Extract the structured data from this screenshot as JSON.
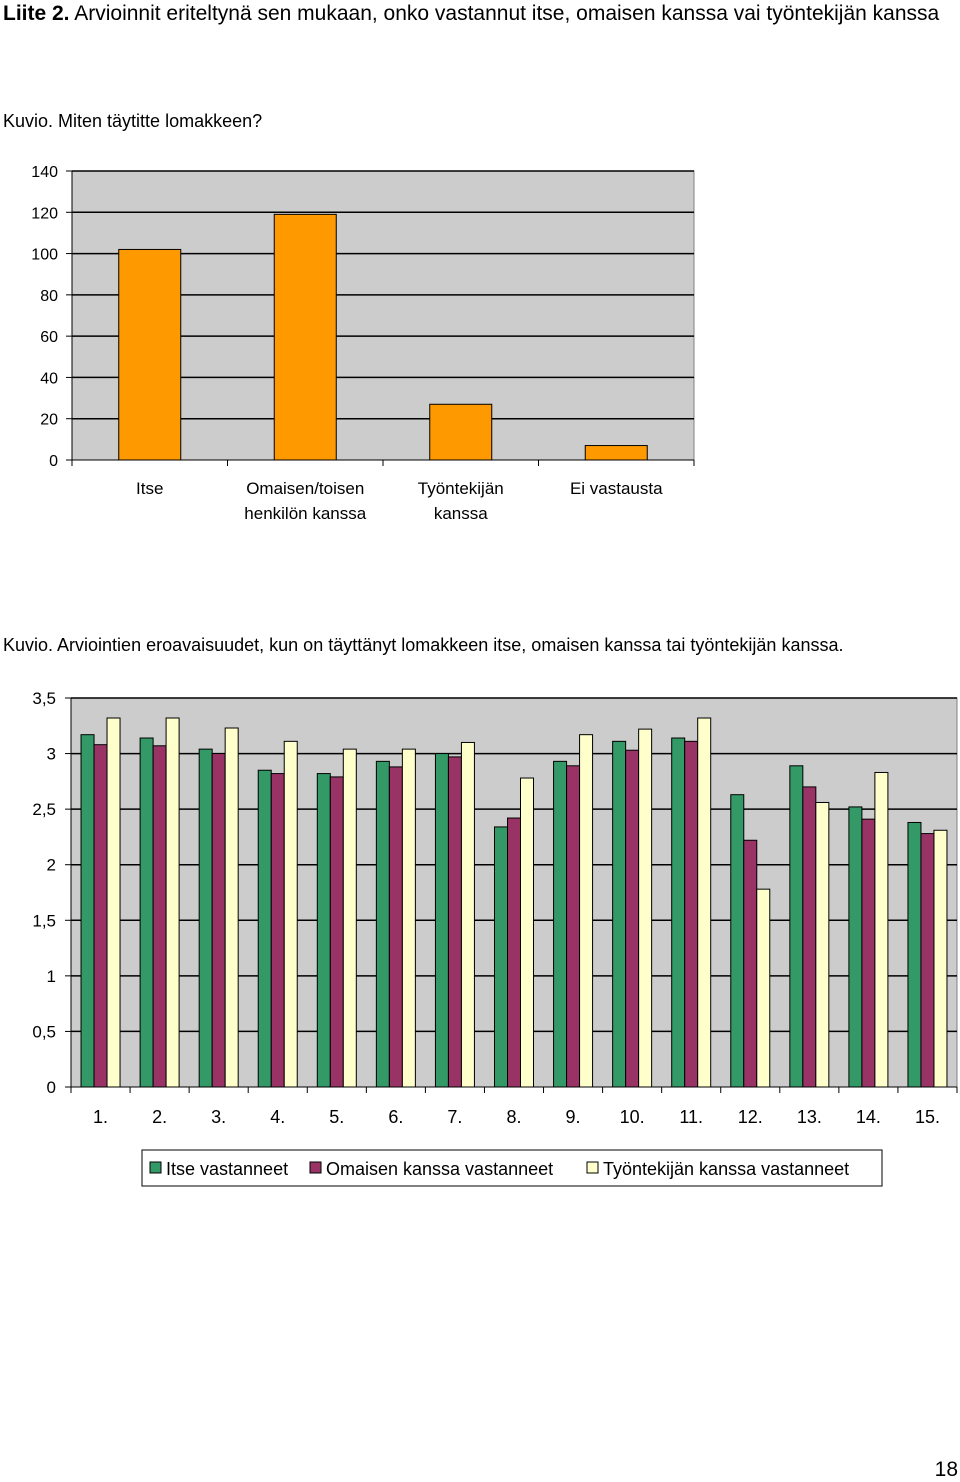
{
  "heading": {
    "label": "Liite 2.",
    "text": "Arvioinnit eriteltynä sen mukaan, onko vastannut itse, omaisen kanssa vai työntekijän kanssa"
  },
  "page_number": "18",
  "chart_data": [
    {
      "type": "bar",
      "caption": "Kuvio. Miten täytitte lomakkeen?",
      "categories": [
        "Itse",
        "Omaisen/toisen henkilön kanssa",
        "Työntekijän kanssa",
        "Ei vastausta"
      ],
      "category_lines": [
        [
          "Itse"
        ],
        [
          "Omaisen/toisen",
          "henkilön kanssa"
        ],
        [
          "Työntekijän",
          "kanssa"
        ],
        [
          "Ei vastausta"
        ]
      ],
      "values": [
        102,
        119,
        27,
        7
      ],
      "ylim": [
        0,
        140
      ],
      "yticks": [
        "0",
        "20",
        "40",
        "60",
        "80",
        "100",
        "120",
        "140"
      ],
      "grid": true,
      "color": "#FF9900",
      "plot_background": "#CCCCCC"
    },
    {
      "type": "bar",
      "caption": "Kuvio. Arviointien eroavaisuudet, kun on täyttänyt lomakkeen itse, omaisen kanssa tai työntekijän kanssa.",
      "categories": [
        "1.",
        "2.",
        "3.",
        "4.",
        "5.",
        "6.",
        "7.",
        "8.",
        "9.",
        "10.",
        "11.",
        "12.",
        "13.",
        "14.",
        "15."
      ],
      "ylim": [
        0,
        3.5
      ],
      "yticks": [
        "0",
        "0,5",
        "1",
        "1,5",
        "2",
        "2,5",
        "3",
        "3,5"
      ],
      "grid": true,
      "legend": "bottom",
      "plot_background": "#CCCCCC",
      "series": [
        {
          "name": "Itse vastanneet",
          "color": "#339966",
          "values": [
            3.17,
            3.14,
            3.04,
            2.85,
            2.82,
            2.93,
            3.0,
            2.34,
            2.93,
            3.11,
            3.14,
            2.63,
            2.89,
            2.52,
            2.38
          ]
        },
        {
          "name": "Omaisen kanssa vastanneet",
          "color": "#993366",
          "values": [
            3.08,
            3.07,
            3.0,
            2.82,
            2.79,
            2.88,
            2.97,
            2.42,
            2.89,
            3.03,
            3.11,
            2.22,
            2.7,
            2.41,
            2.28
          ]
        },
        {
          "name": "Työntekijän kanssa vastanneet",
          "color": "#FFFFCC",
          "values": [
            3.32,
            3.32,
            3.23,
            3.11,
            3.04,
            3.04,
            3.1,
            2.78,
            3.17,
            3.22,
            3.32,
            1.78,
            2.56,
            2.83,
            2.31
          ]
        }
      ]
    }
  ]
}
